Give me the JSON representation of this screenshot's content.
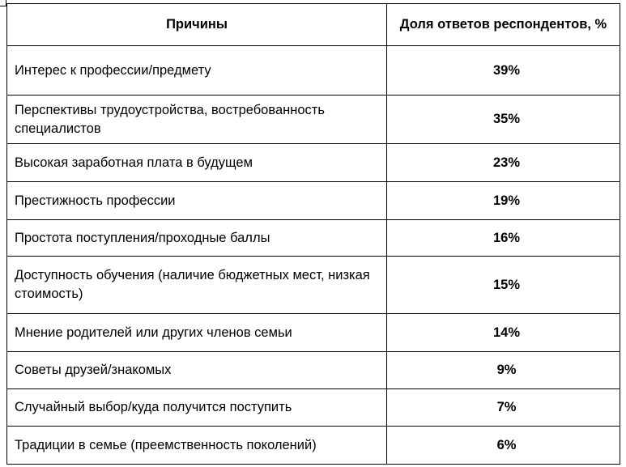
{
  "table": {
    "header": {
      "reason": "Причины",
      "share": "Доля ответов респондентов, %"
    },
    "rows": [
      {
        "reason": "Интерес к профессии/предмету",
        "share": "39%"
      },
      {
        "reason": "Перспективы трудоустройства, востребованность специалистов",
        "share": "35%"
      },
      {
        "reason": "Высокая заработная плата в будущем",
        "share": "23%"
      },
      {
        "reason": "Престижность профессии",
        "share": "19%"
      },
      {
        "reason": "Простота поступления/проходные баллы",
        "share": "16%"
      },
      {
        "reason": "Доступность обучения (наличие бюджетных мест, низкая стоимость)",
        "share": "15%"
      },
      {
        "reason": "Мнение родителей или других членов семьи",
        "share": "14%"
      },
      {
        "reason": "Советы друзей/знакомых",
        "share": "9%"
      },
      {
        "reason": "Случайный выбор/куда получится поступить",
        "share": "7%"
      },
      {
        "reason": "Традиции в семье (преемственность поколений)",
        "share": "6%"
      }
    ]
  }
}
